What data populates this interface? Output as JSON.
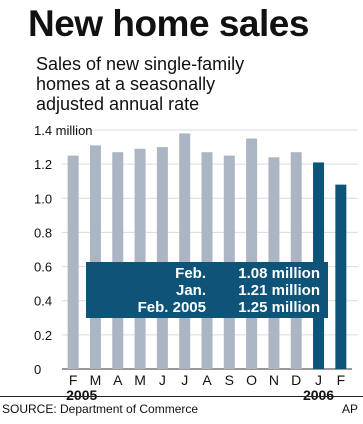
{
  "title": "New home sales",
  "subtitle_lines": [
    "Sales of new single-family",
    "homes at a seasonally",
    "adjusted annual rate"
  ],
  "callout": [
    {
      "label": "Feb.",
      "value": "1.08 million"
    },
    {
      "label": "Jan.",
      "value": "1.21 million"
    },
    {
      "label": "Feb. 2005",
      "value": "1.25 million"
    }
  ],
  "source": "SOURCE: Department of Commerce",
  "credit": "AP",
  "colors": {
    "bar_2005": "#abb5c4",
    "bar_2006": "#0e5478",
    "callout_bg": "#0e5478",
    "gridline": "#d8dce2"
  },
  "chart_data": {
    "type": "bar",
    "categories": [
      "F",
      "M",
      "A",
      "M",
      "J",
      "J",
      "A",
      "S",
      "O",
      "N",
      "D",
      "J",
      "F"
    ],
    "year_labels": [
      {
        "index": 0,
        "text": "2005"
      },
      {
        "index": 11,
        "text": "2006"
      }
    ],
    "values": [
      1.25,
      1.31,
      1.27,
      1.29,
      1.3,
      1.38,
      1.27,
      1.25,
      1.35,
      1.24,
      1.27,
      1.21,
      1.08
    ],
    "highlight_from_index": 11,
    "y_ticks": [
      {
        "value": 0,
        "label": "0"
      },
      {
        "value": 0.2,
        "label": "0.2"
      },
      {
        "value": 0.4,
        "label": "0.4"
      },
      {
        "value": 0.6,
        "label": "0.6"
      },
      {
        "value": 0.8,
        "label": "0.8"
      },
      {
        "value": 1.0,
        "label": "1.0"
      },
      {
        "value": 1.2,
        "label": "1.2"
      },
      {
        "value": 1.4,
        "label": "1.4 million"
      }
    ],
    "ylim": [
      0,
      1.4
    ],
    "grid": true,
    "legend": "none",
    "title": "New home sales",
    "xlabel": "",
    "ylabel": ""
  }
}
